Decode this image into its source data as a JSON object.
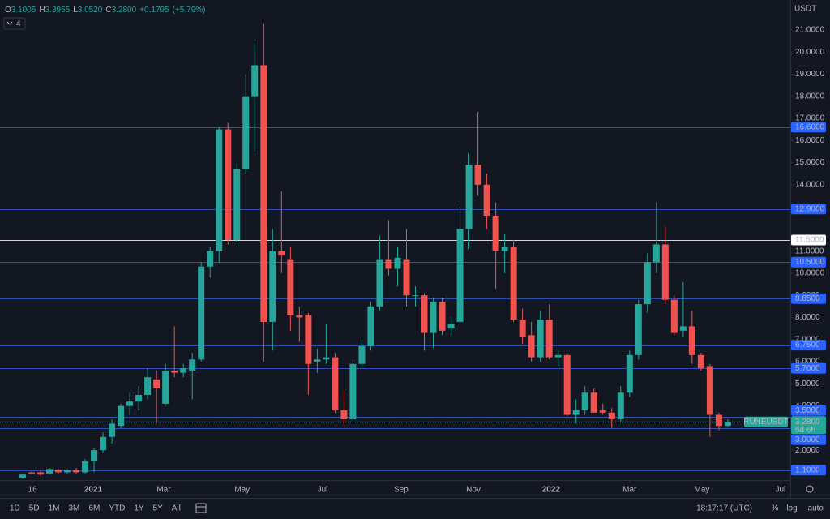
{
  "header": {
    "open_label": "O",
    "open": "3.1005",
    "high_label": "H",
    "high": "3.3955",
    "low_label": "L",
    "low": "3.0520",
    "close_label": "C",
    "close": "3.2800",
    "change": "+0.1795",
    "change_pct": "(+5.79%)",
    "indicators": "4",
    "currency": "USDT"
  },
  "toolbar": {
    "ranges": [
      "1D",
      "5D",
      "1M",
      "3M",
      "6M",
      "YTD",
      "1Y",
      "5Y",
      "All"
    ],
    "clock": "18:17:17 (UTC)",
    "options": [
      "%",
      "log",
      "auto"
    ]
  },
  "chart_data": {
    "type": "candlestick",
    "name": "RUNEUSDT",
    "up_color": "#26a69a",
    "down_color": "#ef5350",
    "open": [
      0.75,
      1.0,
      1.0,
      0.95,
      1.1,
      1.0,
      1.1,
      1.0,
      1.5,
      2.0,
      2.6,
      3.1,
      4.0,
      4.2,
      4.5,
      5.2,
      4.1,
      5.6,
      5.5,
      5.6,
      6.1,
      10.3,
      11.0,
      16.5,
      11.5,
      14.7,
      18.0,
      19.4,
      7.8,
      11.0,
      10.6,
      8.1,
      8.1,
      6.0,
      6.1,
      6.2,
      3.8,
      3.4,
      5.9,
      6.7,
      8.5,
      10.6,
      10.2,
      10.6,
      9.0,
      9.0,
      7.3,
      8.7,
      7.5,
      7.8,
      12.0,
      14.9,
      14.0,
      12.6,
      11.0,
      11.2,
      7.9,
      7.2,
      6.2,
      7.9,
      6.2,
      6.3,
      3.6,
      3.8,
      4.6,
      3.8,
      3.7,
      3.4,
      4.6,
      6.3,
      8.6,
      10.5,
      11.3,
      8.8,
      7.4,
      7.6,
      6.3,
      5.8,
      3.6,
      3.1005
    ],
    "high": [
      0.95,
      1.05,
      1.05,
      1.2,
      1.15,
      1.15,
      1.2,
      1.6,
      2.1,
      2.8,
      3.4,
      4.1,
      4.6,
      4.9,
      5.7,
      5.6,
      5.9,
      7.6,
      5.9,
      6.4,
      10.5,
      11.2,
      16.6,
      16.8,
      15.0,
      19.0,
      20.4,
      21.3,
      12.0,
      13.7,
      11.2,
      8.5,
      8.2,
      6.6,
      7.7,
      6.4,
      4.7,
      6.1,
      7.0,
      8.7,
      11.7,
      12.4,
      11.2,
      12.0,
      9.4,
      9.1,
      8.9,
      8.9,
      8.0,
      13.0,
      15.4,
      17.3,
      14.5,
      13.2,
      11.8,
      11.5,
      8.4,
      7.8,
      8.3,
      8.6,
      6.5,
      6.4,
      4.3,
      4.9,
      4.8,
      4.1,
      3.9,
      4.9,
      6.5,
      8.8,
      10.9,
      13.2,
      12.1,
      9.0,
      9.6,
      8.3,
      6.4,
      5.9,
      3.7,
      3.3955
    ],
    "low": [
      0.7,
      0.9,
      0.85,
      0.9,
      0.95,
      0.95,
      0.95,
      0.95,
      1.0,
      1.9,
      2.3,
      3.0,
      3.6,
      3.8,
      4.3,
      3.2,
      4.0,
      5.3,
      5.3,
      4.3,
      6.0,
      9.8,
      10.5,
      11.3,
      11.3,
      14.5,
      15.5,
      6.0,
      6.5,
      10.0,
      7.4,
      6.9,
      4.5,
      5.5,
      5.9,
      3.7,
      3.1,
      3.3,
      5.7,
      6.5,
      8.3,
      9.9,
      9.4,
      8.5,
      8.5,
      6.5,
      6.6,
      7.2,
      7.2,
      7.5,
      11.1,
      13.5,
      12.0,
      9.3,
      10.0,
      7.8,
      6.8,
      6.0,
      6.0,
      6.1,
      5.8,
      3.5,
      3.2,
      3.6,
      3.7,
      3.6,
      3.0,
      3.3,
      4.4,
      6.1,
      8.2,
      10.0,
      8.6,
      7.2,
      7.1,
      5.9,
      5.6,
      2.6,
      2.9,
      3.052
    ],
    "close": [
      0.9,
      0.95,
      0.9,
      1.15,
      1.0,
      1.1,
      1.0,
      1.5,
      2.0,
      2.6,
      3.2,
      4.0,
      4.2,
      4.5,
      5.3,
      4.8,
      5.6,
      5.5,
      5.7,
      6.1,
      10.3,
      11.0,
      16.5,
      11.5,
      14.7,
      18.0,
      19.4,
      7.8,
      11.0,
      10.8,
      8.1,
      8.0,
      5.9,
      6.1,
      6.2,
      3.8,
      3.4,
      5.9,
      6.7,
      8.5,
      10.6,
      10.2,
      10.7,
      9.0,
      9.0,
      7.3,
      8.7,
      7.4,
      7.7,
      12.0,
      14.9,
      14.0,
      12.6,
      11.0,
      11.2,
      7.9,
      7.1,
      6.2,
      7.9,
      6.2,
      6.3,
      3.6,
      3.8,
      4.6,
      3.7,
      3.7,
      3.4,
      4.6,
      6.3,
      8.6,
      10.5,
      11.3,
      8.8,
      7.3,
      7.6,
      6.3,
      5.7,
      3.6,
      3.1,
      3.28
    ],
    "last_price": {
      "value": 3.28,
      "label": "3.2800"
    },
    "countdown": "6d 6h",
    "levels": [
      {
        "value": 16.6,
        "label": "16.6000",
        "color": "#2962ff"
      },
      {
        "value": 12.9,
        "label": "12.9000",
        "color": "#2962ff"
      },
      {
        "value": 11.5,
        "label": "11.5000",
        "color": "#ffffff"
      },
      {
        "value": 10.5,
        "label": "10.5000",
        "color": "#2962ff"
      },
      {
        "value": 8.85,
        "label": "8.8500",
        "color": "#2962ff"
      },
      {
        "value": 6.75,
        "label": "6.7500",
        "color": "#2962ff"
      },
      {
        "value": 5.7,
        "label": "5.7000",
        "color": "#2962ff"
      },
      {
        "value": 3.5,
        "label": "3.5000",
        "color": "#2962ff"
      },
      {
        "value": 3.0,
        "label": "3.0000",
        "color": "#2962ff"
      },
      {
        "value": 1.1,
        "label": "1.1000",
        "color": "#2962ff"
      }
    ],
    "xlim": [
      -2.54,
      86.0
    ],
    "xticks": [
      {
        "value": 1.1,
        "label": "16"
      },
      {
        "value": 7.9,
        "label": "2021"
      },
      {
        "value": 15.8,
        "label": "Mar"
      },
      {
        "value": 24.6,
        "label": "May"
      },
      {
        "value": 33.6,
        "label": "Jul"
      },
      {
        "value": 42.4,
        "label": "Sep"
      },
      {
        "value": 50.5,
        "label": "Nov"
      },
      {
        "value": 59.2,
        "label": "2022"
      },
      {
        "value": 68.0,
        "label": "Mar"
      },
      {
        "value": 76.1,
        "label": "May"
      },
      {
        "value": 84.9,
        "label": "Jul"
      }
    ],
    "ylim": [
      0.65,
      22.35
    ],
    "yticks": [
      {
        "value": 21,
        "label": "21.0000"
      },
      {
        "value": 20,
        "label": "20.0000"
      },
      {
        "value": 19,
        "label": "19.0000"
      },
      {
        "value": 18,
        "label": "18.0000"
      },
      {
        "value": 17,
        "label": "17.0000"
      },
      {
        "value": 16,
        "label": "16.0000"
      },
      {
        "value": 15,
        "label": "15.0000"
      },
      {
        "value": 14,
        "label": "14.0000"
      },
      {
        "value": 11,
        "label": "11.0000"
      },
      {
        "value": 10,
        "label": "10.0000"
      },
      {
        "value": 9,
        "label": "9.0000"
      },
      {
        "value": 8,
        "label": "8.0000"
      },
      {
        "value": 7,
        "label": "7.0000"
      },
      {
        "value": 6,
        "label": "6.0000"
      },
      {
        "value": 5,
        "label": "5.0000"
      },
      {
        "value": 4,
        "label": "4.0000"
      },
      {
        "value": 2,
        "label": "2.0000"
      }
    ]
  }
}
